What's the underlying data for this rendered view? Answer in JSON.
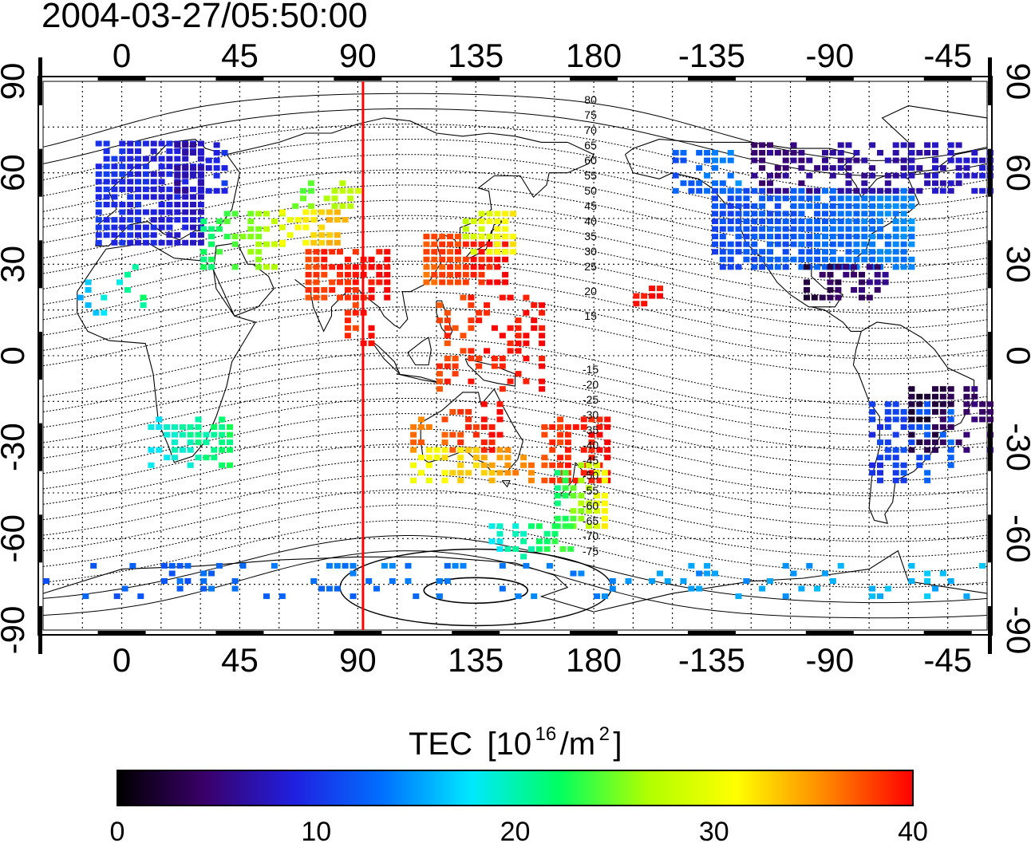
{
  "title": "2004-03-27/05:50:00",
  "map": {
    "lon_range": [
      -30,
      330
    ],
    "lat_range": [
      -90,
      90
    ],
    "top_ticks": [
      "0",
      "45",
      "90",
      "135",
      "180",
      "-135",
      "-90",
      "-45"
    ],
    "bottom_ticks": [
      "0",
      "45",
      "90",
      "135",
      "180",
      "-135",
      "-90",
      "-45"
    ],
    "left_ticks": [
      "90",
      "60",
      "30",
      "0",
      "-30",
      "-60",
      "-90"
    ],
    "right_ticks": [
      "90",
      "60",
      "30",
      "0",
      "-30",
      "-60",
      "-90"
    ],
    "tick_lon_values": [
      0,
      45,
      90,
      135,
      180,
      225,
      270,
      315
    ],
    "tick_lat_values": [
      90,
      60,
      30,
      0,
      -30,
      -60,
      -90
    ],
    "marker_line_lon": 92,
    "marker_line_color": "#ff0000",
    "grid": true,
    "contour_labels_north": [
      "80",
      "75",
      "70",
      "65",
      "60",
      "55",
      "50",
      "45",
      "40",
      "35",
      "30",
      "25",
      "20",
      "15"
    ],
    "contour_labels_south": [
      "15",
      "20",
      "25",
      "30",
      "35",
      "40",
      "45",
      "50",
      "55",
      "60",
      "65",
      "70",
      "75"
    ]
  },
  "colorbar": {
    "title": "TEC",
    "unit_prefix": "[10",
    "unit_exp": "16",
    "unit_mid": "/m",
    "unit_exp2": "2",
    "unit_suffix": "]",
    "min": 0,
    "max": 40,
    "tick_labels": [
      "0",
      "10",
      "20",
      "30",
      "40"
    ],
    "colors": [
      "#000000",
      "#3a006a",
      "#2020e0",
      "#0070ff",
      "#00e8ff",
      "#00ff60",
      "#b0ff00",
      "#ffff00",
      "#ff8800",
      "#ff0000"
    ]
  }
}
